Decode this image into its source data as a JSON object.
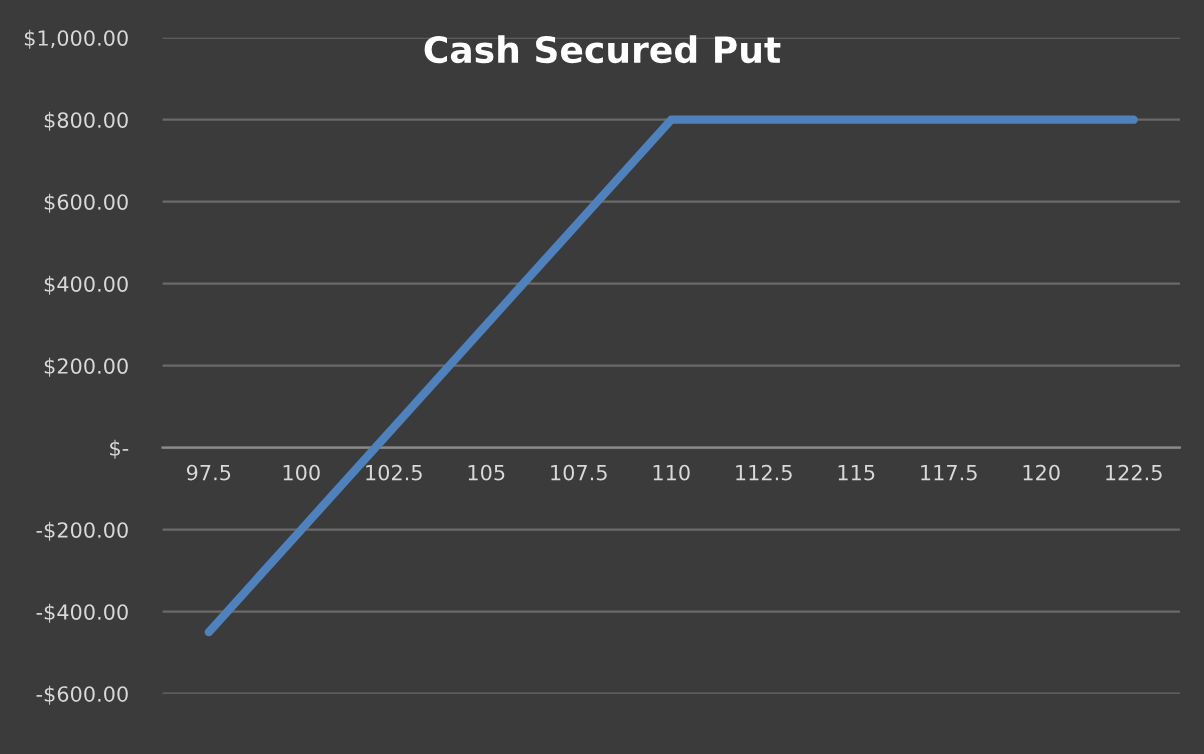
{
  "chart_data": {
    "type": "line",
    "title": "Cash Secured Put",
    "categories": [
      "97.5",
      "100",
      "102.5",
      "105",
      "107.5",
      "110",
      "112.5",
      "115",
      "117.5",
      "120",
      "122.5"
    ],
    "series": [
      {
        "color": "#4f81bd",
        "values": [
          -450,
          -200,
          50,
          300,
          550,
          800,
          800,
          800,
          800,
          800,
          800
        ]
      }
    ],
    "ylim": [
      -600,
      1000
    ],
    "yticks": [
      {
        "value": -600,
        "label": "-$600.00"
      },
      {
        "value": -400,
        "label": "-$400.00"
      },
      {
        "value": -200,
        "label": "-$200.00"
      },
      {
        "value": 0,
        "label": "$-"
      },
      {
        "value": 200,
        "label": "$200.00"
      },
      {
        "value": 400,
        "label": "$400.00"
      },
      {
        "value": 600,
        "label": "$600.00"
      },
      {
        "value": 800,
        "label": "$800.00"
      },
      {
        "value": 1000,
        "label": "$1,000.00"
      }
    ],
    "grid": "y"
  }
}
